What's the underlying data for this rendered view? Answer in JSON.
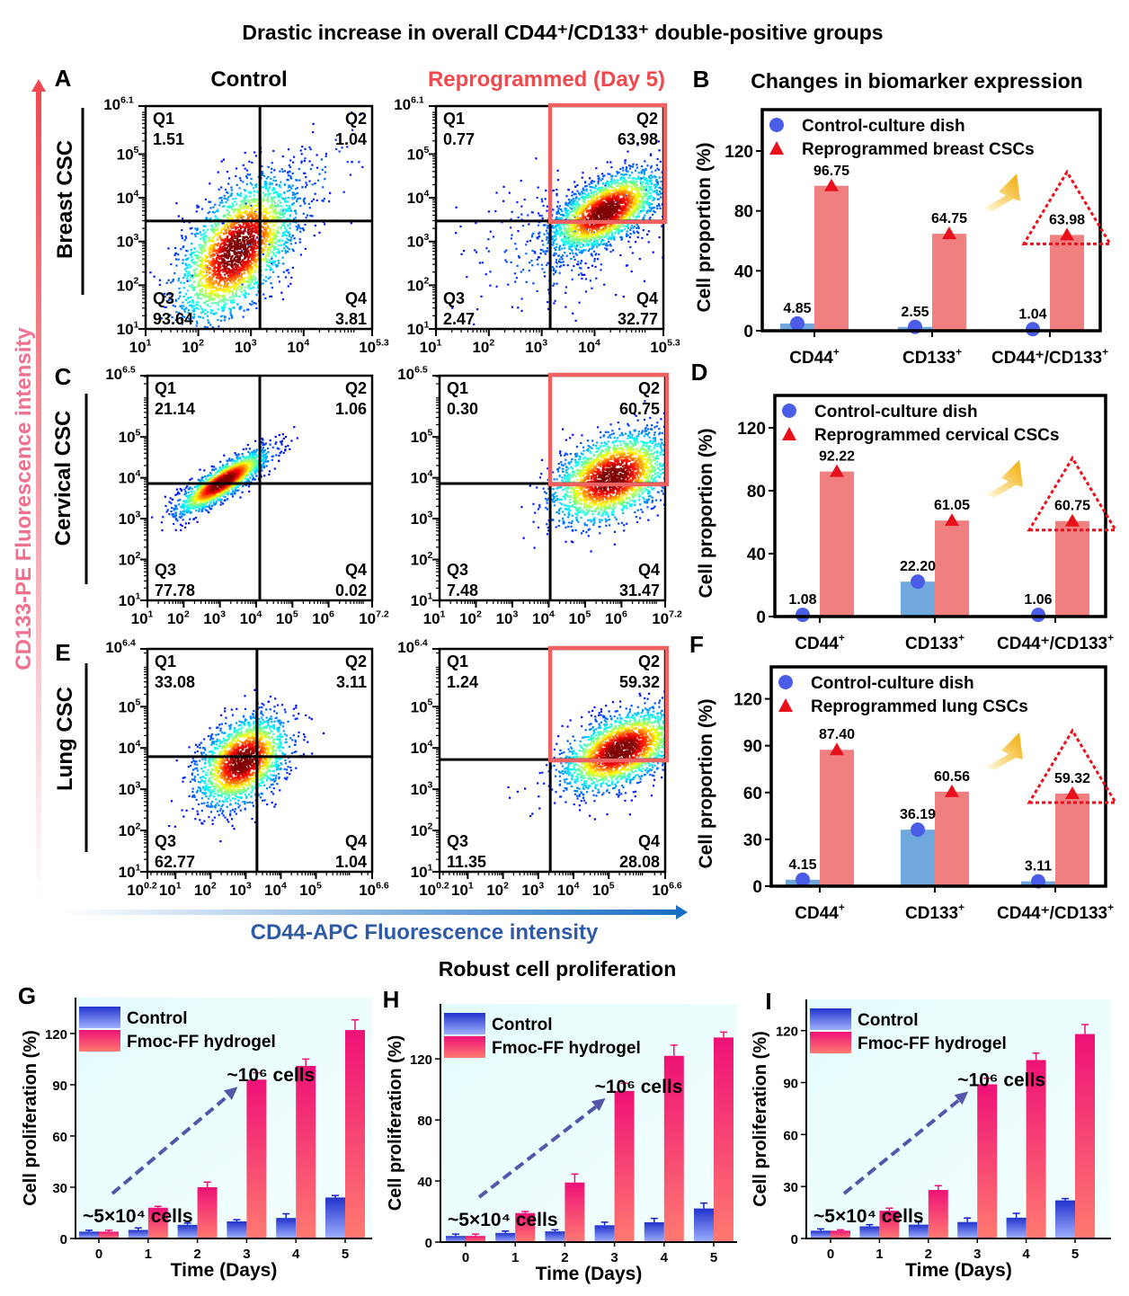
{
  "figure_title": "Drastic increase in overall CD44⁺/CD133⁺ double-positive groups",
  "column_headers": {
    "control": "Control",
    "reprogrammed": "Reprogrammed (Day 5)"
  },
  "y_axis_label": "CD133-PE Fluorescence intensity",
  "x_axis_label": "CD44-APC  Fluorescence intensity",
  "proliferation_title": "Robust cell proliferation",
  "colors": {
    "reprogrammed_red": "#f0494e",
    "highlight_box": "#f06262",
    "control_bar": "#6fa8dc",
    "reprog_bar": "#f08080",
    "control_marker": "#4a5de8",
    "reprog_marker": "#e8101a",
    "xaxis_blue": "#2e5aa8",
    "yaxis_pink": "#f07090"
  },
  "flow_panels": [
    {
      "letter": "A",
      "row_label": "Breast CSC",
      "x_ticks": [
        "1",
        "2",
        "3",
        "4",
        "5.3"
      ],
      "y_ticks": [
        "1",
        "2",
        "3",
        "4",
        "5",
        "6.1"
      ],
      "plots": [
        {
          "condition": "Control",
          "gate": [
            3.17,
            3.47
          ],
          "quadrants": [
            {
              "name": "Q1",
              "value": "1.51"
            },
            {
              "name": "Q2",
              "value": "1.04"
            },
            {
              "name": "Q3",
              "value": "93.64"
            },
            {
              "name": "Q4",
              "value": "3.81"
            }
          ]
        },
        {
          "condition": "Reprogrammed",
          "gate": [
            3.16,
            3.47
          ],
          "highlight": "Q2",
          "quadrants": [
            {
              "name": "Q1",
              "value": "0.77"
            },
            {
              "name": "Q2",
              "value": "63.98"
            },
            {
              "name": "Q3",
              "value": "2.47"
            },
            {
              "name": "Q4",
              "value": "32.77"
            }
          ]
        }
      ]
    },
    {
      "letter": "C",
      "row_label": "Cervical CSC",
      "x_ticks": [
        "1",
        "2",
        "3",
        "4",
        "5",
        "6",
        "7.2"
      ],
      "y_ticks": [
        "1",
        "2",
        "3",
        "4",
        "5",
        "6.5"
      ],
      "plots": [
        {
          "condition": "Control",
          "gate": [
            4.1,
            3.86
          ],
          "quadrants": [
            {
              "name": "Q1",
              "value": "21.14"
            },
            {
              "name": "Q2",
              "value": "1.06"
            },
            {
              "name": "Q3",
              "value": "77.78"
            },
            {
              "name": "Q4",
              "value": "0.02"
            }
          ]
        },
        {
          "condition": "Reprogrammed",
          "gate": [
            4.04,
            3.86
          ],
          "highlight": "Q2",
          "quadrants": [
            {
              "name": "Q1",
              "value": "0.30"
            },
            {
              "name": "Q2",
              "value": "60.75"
            },
            {
              "name": "Q3",
              "value": "7.48"
            },
            {
              "name": "Q4",
              "value": "31.47"
            }
          ]
        }
      ]
    },
    {
      "letter": "E",
      "row_label": "Lung CSC",
      "x_ticks": [
        "0.2",
        "1",
        "2",
        "3",
        "4",
        "5",
        "6.6"
      ],
      "y_ticks": [
        "1",
        "2",
        "3",
        "4",
        "5",
        "6.4"
      ],
      "plots": [
        {
          "condition": "Control",
          "gate": [
            3.32,
            3.79
          ],
          "quadrants": [
            {
              "name": "Q1",
              "value": "33.08"
            },
            {
              "name": "Q2",
              "value": "3.11"
            },
            {
              "name": "Q3",
              "value": "62.77"
            },
            {
              "name": "Q4",
              "value": "1.04"
            }
          ]
        },
        {
          "condition": "Reprogrammed",
          "gate": [
            3.34,
            3.72
          ],
          "highlight": "Q2",
          "quadrants": [
            {
              "name": "Q1",
              "value": "1.24"
            },
            {
              "name": "Q2",
              "value": "59.32"
            },
            {
              "name": "Q3",
              "value": "11.35"
            },
            {
              "name": "Q4",
              "value": "28.08"
            }
          ]
        }
      ]
    }
  ],
  "chart_data": [
    {
      "panel": "B",
      "type": "bar",
      "title": "Changes in biomarker expression",
      "ylabel": "Cell proportion (%)",
      "ylim": [
        0,
        147.6
      ],
      "yticks": [
        "0",
        "40",
        "80",
        "120"
      ],
      "categories": [
        {
          "base": "CD44",
          "sup": "+"
        },
        {
          "base": "CD133",
          "sup": "+"
        },
        {
          "base": "CD44⁺/CD133",
          "sup": "+"
        }
      ],
      "series": [
        {
          "name": "Control-culture dish",
          "marker": "circle",
          "values": [
            4.85,
            2.55,
            1.04
          ],
          "labels": [
            "4.85",
            "2.55",
            "1.04"
          ]
        },
        {
          "name": "Reprogrammed breast CSCs",
          "marker": "triangle",
          "values": [
            96.75,
            64.75,
            63.98
          ],
          "labels": [
            "96.75",
            "64.75",
            "63.98"
          ]
        }
      ]
    },
    {
      "panel": "D",
      "type": "bar",
      "title": "",
      "ylabel": "Cell proportion (%)",
      "ylim": [
        0,
        140.6
      ],
      "yticks": [
        "0",
        "40",
        "80",
        "120"
      ],
      "categories": [
        {
          "base": "CD44",
          "sup": "+"
        },
        {
          "base": "CD133",
          "sup": "+"
        },
        {
          "base": "CD44⁺/CD133",
          "sup": "+"
        }
      ],
      "series": [
        {
          "name": "Control-culture dish",
          "marker": "circle",
          "values": [
            1.08,
            22.2,
            1.06
          ],
          "labels": [
            "1.08",
            "22.20",
            "1.06"
          ]
        },
        {
          "name": "Reprogrammed cervical CSCs",
          "marker": "triangle",
          "values": [
            92.22,
            61.05,
            60.75
          ],
          "labels": [
            "92.22",
            "61.05",
            "60.75"
          ]
        }
      ]
    },
    {
      "panel": "F",
      "type": "bar",
      "title": "",
      "ylabel": "Cell proportion (%)",
      "ylim": [
        0,
        140.5
      ],
      "yticks": [
        "0",
        "30",
        "60",
        "90",
        "120"
      ],
      "categories": [
        {
          "base": "CD44",
          "sup": "+"
        },
        {
          "base": "CD133",
          "sup": "+"
        },
        {
          "base": "CD44⁺/CD133",
          "sup": "+"
        }
      ],
      "series": [
        {
          "name": "Control-culture dish",
          "marker": "circle",
          "values": [
            4.15,
            36.19,
            3.11
          ],
          "labels": [
            "4.15",
            "36.19",
            "3.11"
          ]
        },
        {
          "name": "Reprogrammed lung CSCs",
          "marker": "triangle",
          "values": [
            87.4,
            60.56,
            59.32
          ],
          "labels": [
            "87.40",
            "60.56",
            "59.32"
          ]
        }
      ]
    },
    {
      "panel": "G",
      "type": "bar",
      "xlabel": "Time (Days)",
      "ylabel": "Cell proportion (%)",
      "ylabel_text": "Cell proliferation (%)",
      "ylim": [
        0,
        141
      ],
      "yticks": [
        "0",
        "30",
        "60",
        "90",
        "120"
      ],
      "categories": [
        "0",
        "1",
        "2",
        "3",
        "4",
        "5"
      ],
      "series": [
        {
          "name": "Control",
          "values": [
            4,
            5,
            8,
            10,
            12,
            24
          ],
          "errors": [
            0.8,
            1.2,
            1,
            1,
            2.5,
            1.2
          ]
        },
        {
          "name": "Fmoc-FF hydrogel",
          "values": [
            4,
            18,
            30,
            93,
            101,
            122
          ],
          "errors": [
            0.8,
            0.8,
            3,
            4,
            4,
            6
          ]
        }
      ],
      "annotations": {
        "start": "~5×10⁴ cells",
        "end": "~10⁶ cells"
      }
    },
    {
      "panel": "H",
      "type": "bar",
      "xlabel": "Time (Days)",
      "ylabel_text": "Cell proliferation (%)",
      "ylim": [
        0,
        156
      ],
      "yticks": [
        "0",
        "40",
        "80",
        "120"
      ],
      "categories": [
        "0",
        "1",
        "2",
        "3",
        "4",
        "5"
      ],
      "series": [
        {
          "name": "Control",
          "values": [
            4,
            6,
            7,
            11,
            13,
            22
          ],
          "errors": [
            1.2,
            1.2,
            1,
            2,
            2.5,
            3.5
          ]
        },
        {
          "name": "Fmoc-FF hydrogel",
          "values": [
            4,
            19,
            39,
            99,
            122,
            134
          ],
          "errors": [
            1.2,
            1,
            5.5,
            5,
            7,
            3.5
          ]
        }
      ],
      "annotations": {
        "start": "~5×10⁴ cells",
        "end": "~10⁶ cells"
      }
    },
    {
      "panel": "I",
      "type": "bar",
      "xlabel": "Time (Days)",
      "ylabel_text": "Cell proliferation (%)",
      "ylim": [
        0,
        138
      ],
      "yticks": [
        "0",
        "30",
        "60",
        "90",
        "120"
      ],
      "categories": [
        "0",
        "1",
        "2",
        "3",
        "4",
        "5"
      ],
      "series": [
        {
          "name": "Control",
          "values": [
            4.5,
            7,
            8,
            9.5,
            12,
            22
          ],
          "errors": [
            1,
            1,
            1.5,
            2.3,
            2.5,
            1
          ]
        },
        {
          "name": "Fmoc-FF hydrogel",
          "values": [
            4.5,
            16,
            28,
            89,
            103,
            118
          ],
          "errors": [
            0.5,
            1.5,
            2.5,
            3.5,
            4,
            5.5
          ]
        }
      ],
      "annotations": {
        "start": "~5×10⁴ cells",
        "end": "~10⁶ cells"
      }
    }
  ]
}
